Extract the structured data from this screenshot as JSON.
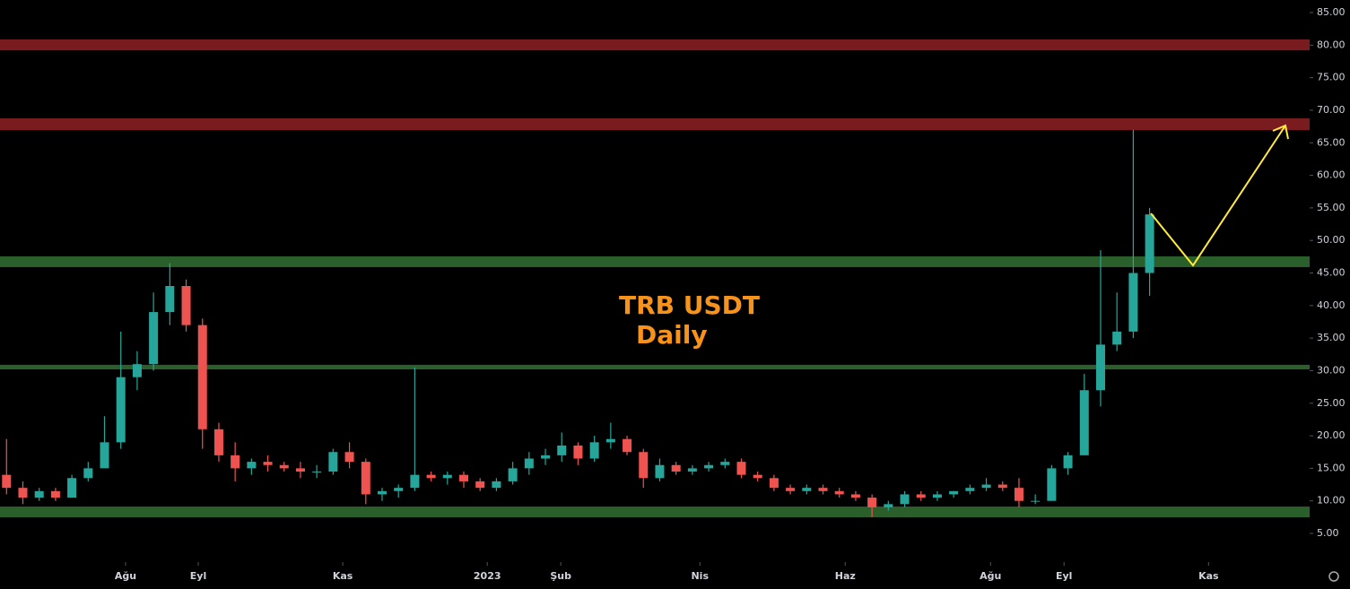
{
  "chart_data": {
    "type": "candlestick",
    "title": "TRB USDT",
    "subtitle": "Daily",
    "up_color": "#26a69a",
    "down_color": "#ef5350",
    "open": [
      14,
      12,
      10.5,
      11.5,
      10.5,
      13.5,
      15,
      19,
      29,
      31,
      39,
      43,
      37,
      21,
      17,
      15,
      16,
      15.5,
      15,
      14.5,
      14.5,
      17.5,
      16,
      11,
      11.5,
      12,
      14,
      13.5,
      14,
      13,
      12,
      13,
      15,
      16.5,
      17,
      18.5,
      16.5,
      19,
      19.5,
      17.5,
      13.5,
      15.5,
      14.5,
      15,
      15.5,
      16,
      14,
      13.5,
      12,
      11.5,
      12,
      11.5,
      11,
      10.5,
      9,
      9.5,
      11,
      10.5,
      11,
      11.5,
      12,
      12.5,
      12,
      10,
      10,
      15,
      17,
      27,
      34,
      36,
      45
    ],
    "high": [
      19.5,
      13,
      12,
      12,
      14,
      16,
      23,
      36,
      33,
      42,
      46.5,
      44,
      38,
      22,
      19,
      16.5,
      17,
      16,
      16,
      15.5,
      18,
      19,
      16.5,
      12,
      12.5,
      30.5,
      14.5,
      14.5,
      14.5,
      13.5,
      13.5,
      16,
      17.5,
      18,
      20.5,
      19,
      20,
      22,
      20,
      18,
      16.5,
      16,
      15.5,
      16,
      16.5,
      16.5,
      14.5,
      14,
      12.5,
      12.5,
      12.5,
      12,
      11.5,
      11,
      10,
      11.5,
      11.5,
      11.5,
      11.5,
      12.5,
      13.5,
      13,
      13.5,
      11,
      15.5,
      17.5,
      29.5,
      48.5,
      42,
      67,
      55
    ],
    "low": [
      11,
      9.5,
      10,
      10,
      10.5,
      13,
      15,
      18,
      27,
      30,
      37,
      36,
      18,
      16,
      13,
      14,
      14.5,
      14.5,
      13.5,
      13.5,
      14,
      15,
      9.5,
      10,
      10.5,
      11.5,
      13,
      12.5,
      12,
      11.5,
      11.5,
      12.5,
      14,
      15.5,
      16,
      15.5,
      16,
      18,
      17,
      12,
      13,
      14,
      14,
      14.5,
      15,
      13.5,
      13,
      11.5,
      11,
      11,
      11,
      10.5,
      10,
      7.5,
      8.5,
      9,
      10,
      10,
      10.5,
      11,
      11.5,
      11.5,
      9,
      9.5,
      10,
      14,
      17,
      24.5,
      33,
      35,
      41.5
    ],
    "close": [
      12,
      10.5,
      11.5,
      10.5,
      13.5,
      15,
      19,
      29,
      31,
      39,
      43,
      37,
      21,
      17,
      15,
      16,
      15.5,
      15,
      14.5,
      14.5,
      17.5,
      16,
      11,
      11.5,
      12,
      14,
      13.5,
      14,
      13,
      12,
      13,
      15,
      16.5,
      17,
      18.5,
      16.5,
      19,
      19.5,
      17.5,
      13.5,
      15.5,
      14.5,
      15,
      15.5,
      16,
      14,
      13.5,
      12,
      11.5,
      12,
      11.5,
      11,
      10.5,
      9,
      9.5,
      11,
      10.5,
      11,
      11.5,
      12,
      12.5,
      12,
      10,
      10,
      15,
      17,
      27,
      34,
      36,
      45,
      54
    ],
    "xlim": [
      -0.4,
      79.8
    ],
    "xticks": [
      {
        "value": 7.29,
        "label": "Ağu"
      },
      {
        "value": 11.74,
        "label": "Eyl"
      },
      {
        "value": 20.59,
        "label": "Kas"
      },
      {
        "value": 29.44,
        "label": "2023"
      },
      {
        "value": 33.94,
        "label": "Şub"
      },
      {
        "value": 42.46,
        "label": "Nis"
      },
      {
        "value": 51.36,
        "label": "Haz"
      },
      {
        "value": 60.26,
        "label": "Ağu"
      },
      {
        "value": 64.76,
        "label": "Eyl"
      },
      {
        "value": 73.61,
        "label": "Kas"
      }
    ],
    "ylim": [
      0.87,
      86.93
    ],
    "yticks": [
      {
        "value": 5,
        "label": "5.00"
      },
      {
        "value": 10,
        "label": "10.00"
      },
      {
        "value": 15,
        "label": "15.00"
      },
      {
        "value": 20,
        "label": "20.00"
      },
      {
        "value": 25,
        "label": "25.00"
      },
      {
        "value": 30,
        "label": "30.00"
      },
      {
        "value": 35,
        "label": "35.00"
      },
      {
        "value": 40,
        "label": "40.00"
      },
      {
        "value": 45,
        "label": "45.00"
      },
      {
        "value": 50,
        "label": "50.00"
      },
      {
        "value": 55,
        "label": "55.00"
      },
      {
        "value": 60,
        "label": "60.00"
      },
      {
        "value": 65,
        "label": "65.00"
      },
      {
        "value": 70,
        "label": "70.00"
      },
      {
        "value": 75,
        "label": "75.00"
      },
      {
        "value": 80,
        "label": "80.00"
      },
      {
        "value": 85,
        "label": "85.00"
      }
    ],
    "zones": [
      {
        "from": 79.2,
        "to": 80.87,
        "color": "#7a1c1f"
      },
      {
        "from": 66.96,
        "to": 68.75,
        "color": "#7a1c1f"
      },
      {
        "from": 45.9,
        "to": 47.55,
        "color": "#2a5e2a"
      },
      {
        "from": 30.2,
        "to": 30.9,
        "color": "#2a5e2a"
      },
      {
        "from": 7.48,
        "to": 9.13,
        "color": "#2a5e2a"
      }
    ]
  }
}
